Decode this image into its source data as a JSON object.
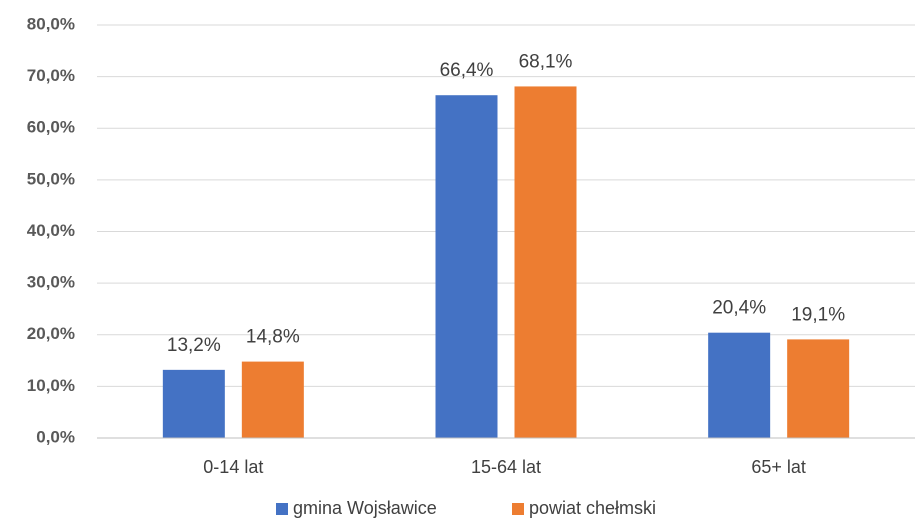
{
  "chart_data": {
    "type": "bar",
    "categories": [
      "0-14 lat",
      "15-64 lat",
      "65+ lat"
    ],
    "series": [
      {
        "name": "gmina Wojsławice",
        "color": "#4472c4",
        "values": [
          13.2,
          66.4,
          20.4
        ],
        "value_labels": [
          "13,2%",
          "66,4%",
          "20,4%"
        ]
      },
      {
        "name": "powiat chełmski",
        "color": "#ed7d31",
        "values": [
          14.8,
          68.1,
          19.1
        ],
        "value_labels": [
          "14,8%",
          "68,1%",
          "19,1%"
        ]
      }
    ],
    "ylim": [
      0,
      80
    ],
    "yticks": [
      {
        "value": 0,
        "label": "0,0%"
      },
      {
        "value": 10,
        "label": "10,0%"
      },
      {
        "value": 20,
        "label": "20,0%"
      },
      {
        "value": 30,
        "label": "30,0%"
      },
      {
        "value": 40,
        "label": "40,0%"
      },
      {
        "value": 50,
        "label": "50,0%"
      },
      {
        "value": 60,
        "label": "60,0%"
      },
      {
        "value": 70,
        "label": "70,0%"
      },
      {
        "value": 80,
        "label": "80,0%"
      }
    ],
    "grid": true,
    "legend": "bottom"
  }
}
